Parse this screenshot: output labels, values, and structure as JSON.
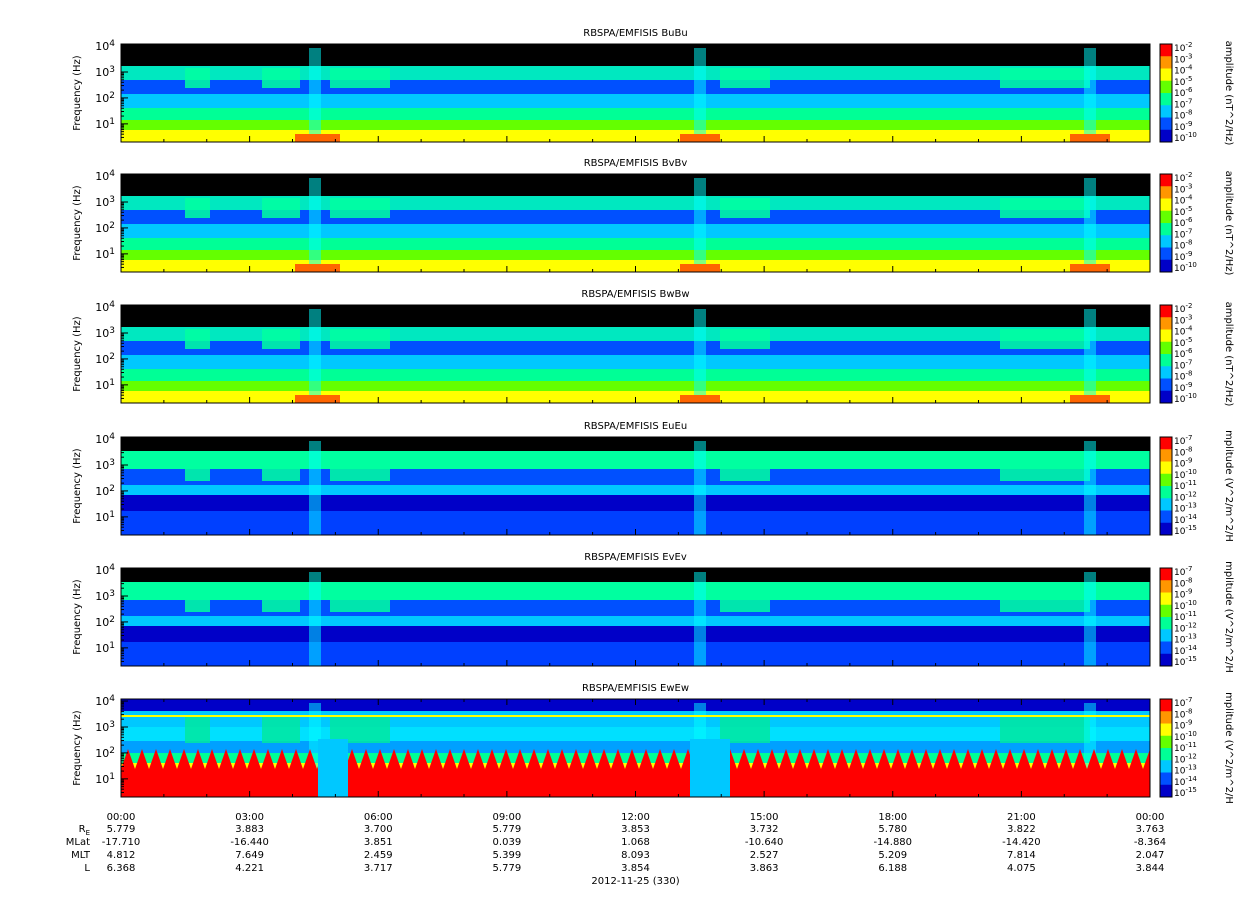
{
  "chart_data": {
    "type": "heatmap",
    "panels": [
      {
        "title": "RBSPA/EMFISIS  BuBu",
        "ylabel": "Frequency (Hz)",
        "cbar_label": "amplitude (nT^2/Hz)",
        "ylim": [
          2,
          12000
        ],
        "y_scale": "log",
        "y_ticks": [
          "10^1",
          "10^2",
          "10^3",
          "10^4"
        ],
        "cbar_ticks": [
          "10^-2",
          "10^-3",
          "10^-4",
          "10^-5",
          "10^-6",
          "10^-7",
          "10^-8",
          "10^-9",
          "10^-10"
        ]
      },
      {
        "title": "RBSPA/EMFISIS  BvBv",
        "ylabel": "Frequency (Hz)",
        "cbar_label": "amplitude (nT^2/Hz)",
        "ylim": [
          2,
          12000
        ],
        "y_scale": "log",
        "y_ticks": [
          "10^1",
          "10^2",
          "10^3",
          "10^4"
        ],
        "cbar_ticks": [
          "10^-2",
          "10^-3",
          "10^-4",
          "10^-5",
          "10^-6",
          "10^-7",
          "10^-8",
          "10^-9",
          "10^-10"
        ]
      },
      {
        "title": "RBSPA/EMFISIS  BwBw",
        "ylabel": "Frequency (Hz)",
        "cbar_label": "amplitude (nT^2/Hz)",
        "ylim": [
          2,
          12000
        ],
        "y_scale": "log",
        "y_ticks": [
          "10^1",
          "10^2",
          "10^3",
          "10^4"
        ],
        "cbar_ticks": [
          "10^-2",
          "10^-3",
          "10^-4",
          "10^-5",
          "10^-6",
          "10^-7",
          "10^-8",
          "10^-9",
          "10^-10"
        ]
      },
      {
        "title": "RBSPA/EMFISIS  EuEu",
        "ylabel": "Frequency (Hz)",
        "cbar_label": "mplitude (V^2/m^2/H",
        "ylim": [
          2,
          12000
        ],
        "y_scale": "log",
        "y_ticks": [
          "10^1",
          "10^2",
          "10^3",
          "10^4"
        ],
        "cbar_ticks": [
          "10^-7",
          "10^-8",
          "10^-9",
          "10^-10",
          "10^-11",
          "10^-12",
          "10^-13",
          "10^-14",
          "10^-15"
        ]
      },
      {
        "title": "RBSPA/EMFISIS  EvEv",
        "ylabel": "Frequency (Hz)",
        "cbar_label": "mplitude (V^2/m^2/H",
        "ylim": [
          2,
          12000
        ],
        "y_scale": "log",
        "y_ticks": [
          "10^1",
          "10^2",
          "10^3",
          "10^4"
        ],
        "cbar_ticks": [
          "10^-7",
          "10^-8",
          "10^-9",
          "10^-10",
          "10^-11",
          "10^-12",
          "10^-13",
          "10^-14",
          "10^-15"
        ]
      },
      {
        "title": "RBSPA/EMFISIS  EwEw",
        "ylabel": "Frequency (Hz)",
        "cbar_label": "mplitude (V^2/m^2/H",
        "ylim": [
          2,
          12000
        ],
        "y_scale": "log",
        "y_ticks": [
          "10^1",
          "10^2",
          "10^3",
          "10^4"
        ],
        "cbar_ticks": [
          "10^-7",
          "10^-8",
          "10^-9",
          "10^-10",
          "10^-11",
          "10^-12",
          "10^-13",
          "10^-14",
          "10^-15"
        ]
      }
    ],
    "x_axis": {
      "tick_labels": [
        "00:00",
        "03:00",
        "06:00",
        "09:00",
        "12:00",
        "15:00",
        "18:00",
        "21:00",
        "00:00"
      ],
      "rows": [
        {
          "label": "R",
          "sub": "E",
          "values": [
            "5.779",
            "3.883",
            "3.700",
            "5.779",
            "3.853",
            "3.732",
            "5.780",
            "3.822",
            "3.763"
          ]
        },
        {
          "label": "MLat",
          "values": [
            "-17.710",
            "-16.440",
            "3.851",
            "0.039",
            "1.068",
            "-10.640",
            "-14.880",
            "-14.420",
            "-8.364"
          ]
        },
        {
          "label": "MLT",
          "values": [
            "4.812",
            "7.649",
            "2.459",
            "5.399",
            "8.093",
            "2.527",
            "5.209",
            "7.814",
            "2.047"
          ]
        },
        {
          "label": "L",
          "values": [
            "6.368",
            "4.221",
            "3.717",
            "5.779",
            "3.854",
            "3.863",
            "6.188",
            "4.075",
            "3.844"
          ]
        }
      ],
      "date_label": "2012-11-25 (330)"
    },
    "colormap": [
      "#0000c8",
      "#0050ff",
      "#00c8ff",
      "#00ff96",
      "#64ff00",
      "#ffff00",
      "#ff9600",
      "#ff0000"
    ]
  }
}
